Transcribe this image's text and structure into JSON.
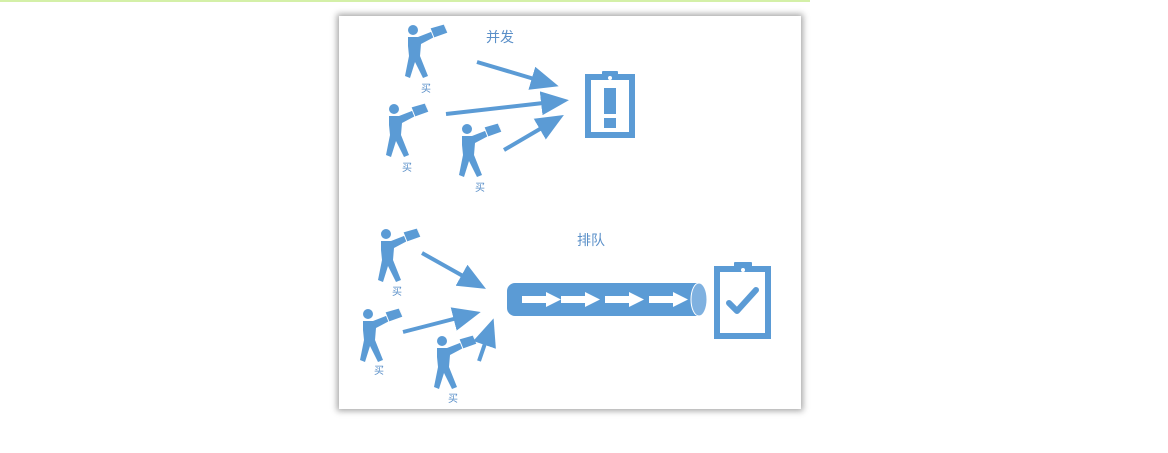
{
  "concurrent": {
    "title": "并发",
    "buyers": [
      {
        "label": "买"
      },
      {
        "label": "买"
      },
      {
        "label": "买"
      }
    ],
    "target_icon": "clipboard-alert-icon"
  },
  "queue": {
    "title": "排队",
    "buyers": [
      {
        "label": "买"
      },
      {
        "label": "买"
      },
      {
        "label": "买"
      }
    ],
    "pipe_icon": "queue-pipe-icon",
    "target_icon": "clipboard-check-icon"
  },
  "colors": {
    "accent": "#5b9bd5",
    "text": "#5a8fc8",
    "top_line": "#d4f0a8"
  }
}
